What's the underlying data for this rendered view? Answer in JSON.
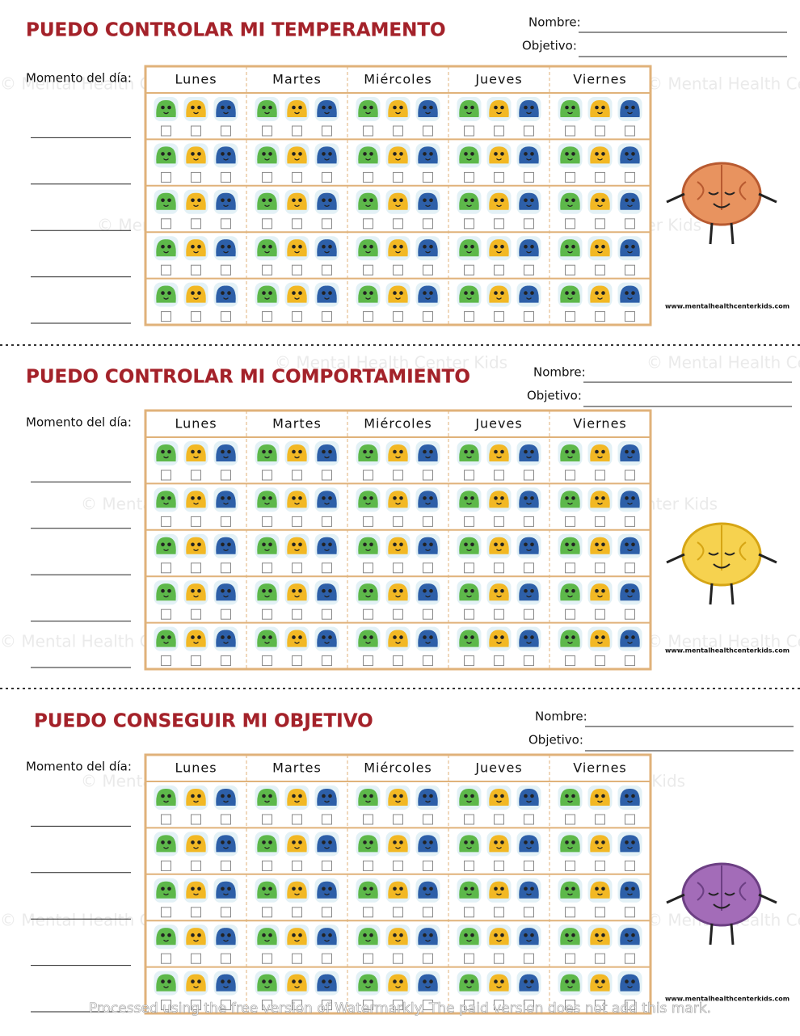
{
  "sections": [
    {
      "title": "PUEDO CONTROLAR MI TEMPERAMENTO",
      "name_label": "Nombre:",
      "goal_label": "Objetivo:",
      "moment_label": "Momento del día:",
      "days": [
        "Lunes",
        "Martes",
        "Miércoles",
        "Jueves",
        "Viernes"
      ],
      "website": "www.mentalhealthcenterkids.com"
    },
    {
      "title": "PUEDO CONTROLAR MI COMPORTAMIENTO",
      "name_label": "Nombre:",
      "goal_label": "Objetivo:",
      "moment_label": "Momento del día:",
      "days": [
        "Lunes",
        "Martes",
        "Miércoles",
        "Jueves",
        "Viernes"
      ],
      "website": "www.mentalhealthcenterkids.com"
    },
    {
      "title": "PUEDO CONSEGUIR MI OBJETIVO",
      "name_label": "Nombre:",
      "goal_label": "Objetivo:",
      "moment_label": "Momento del día:",
      "days": [
        "Lunes",
        "Martes",
        "Miércoles",
        "Jueves",
        "Viernes"
      ],
      "website": "www.mentalhealthcenterkids.com"
    }
  ],
  "watermark": "© Mental Health Center Kids",
  "footer": "Processed using the free version of Watermarkly. The paid version does not add this mark."
}
